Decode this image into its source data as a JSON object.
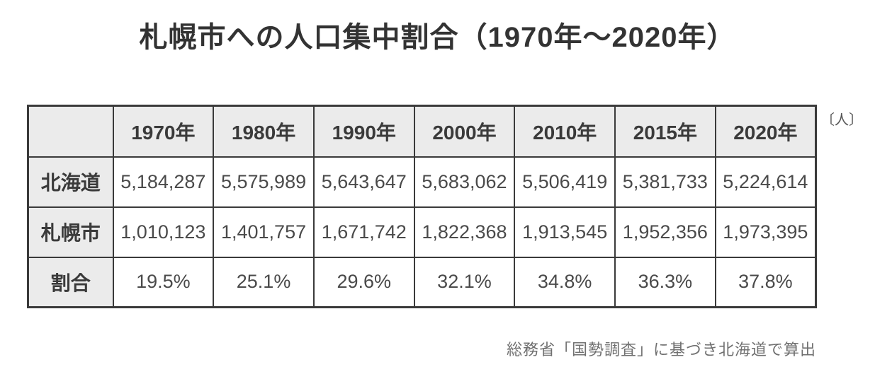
{
  "page": {
    "title": "札幌市への人口集中割合（1970年～2020年）",
    "unit_label": "〔人〕",
    "source_note": "総務省「国勢調査」に基づき北海道で算出"
  },
  "table": {
    "corner_label": "",
    "columns": [
      "1970年",
      "1980年",
      "1990年",
      "2000年",
      "2010年",
      "2015年",
      "2020年"
    ],
    "rows": [
      {
        "label": "北海道",
        "values": [
          "5,184,287",
          "5,575,989",
          "5,643,647",
          "5,683,062",
          "5,506,419",
          "5,381,733",
          "5,224,614"
        ]
      },
      {
        "label": "札幌市",
        "values": [
          "1,010,123",
          "1,401,757",
          "1,671,742",
          "1,822,368",
          "1,913,545",
          "1,952,356",
          "1,973,395"
        ]
      },
      {
        "label": "割合",
        "values": [
          "19.5%",
          "25.1%",
          "29.6%",
          "32.1%",
          "34.8%",
          "36.3%",
          "37.8%"
        ]
      }
    ]
  },
  "colors": {
    "header_bg": "#ebebeb",
    "border": "#3a3a3a",
    "title_text": "#333333",
    "value_text": "#4a4a4a",
    "note_text": "#707070",
    "background": "#ffffff"
  },
  "chart_data": {
    "type": "table",
    "title": "札幌市への人口集中割合（1970年～2020年）",
    "unit": "人",
    "categories": [
      "1970",
      "1980",
      "1990",
      "2000",
      "2010",
      "2015",
      "2020"
    ],
    "series": [
      {
        "name": "北海道",
        "values": [
          5184287,
          5575989,
          5643647,
          5683062,
          5506419,
          5381733,
          5224614
        ]
      },
      {
        "name": "札幌市",
        "values": [
          1010123,
          1401757,
          1671742,
          1822368,
          1913545,
          1952356,
          1973395
        ]
      },
      {
        "name": "割合",
        "values": [
          "19.5%",
          "25.1%",
          "29.6%",
          "32.1%",
          "34.8%",
          "36.3%",
          "37.8%"
        ]
      }
    ],
    "source": "総務省「国勢調査」に基づき北海道で算出",
    "layout_hints": {
      "header_row_shaded": true,
      "label_column_shaded": true,
      "grid": "full-borders"
    }
  }
}
